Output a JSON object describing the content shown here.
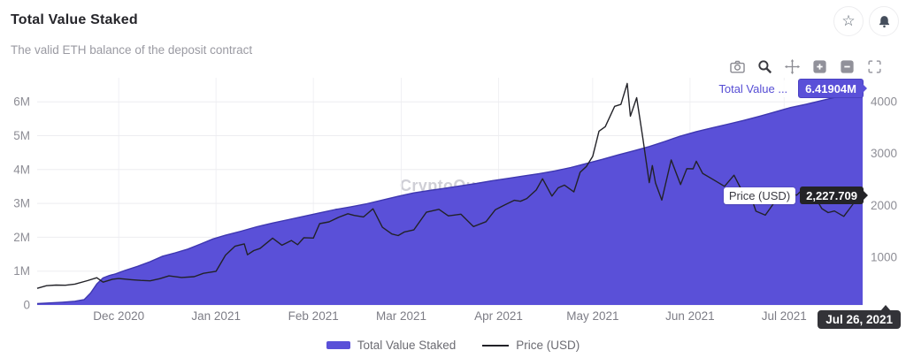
{
  "header": {
    "title": "Total Value Staked",
    "subtitle": "The valid ETH balance of the deposit contract"
  },
  "overlays": {
    "series_label": "Total Value ...",
    "series_value": "6.41904M",
    "price_label": "Price (USD)",
    "price_value": "2,227.709",
    "date_badge": "Jul 26, 2021",
    "watermark": "CryptoQuant"
  },
  "legend": {
    "items": [
      {
        "label": "Total Value Staked",
        "type": "area"
      },
      {
        "label": "Price (USD)",
        "type": "line"
      }
    ]
  },
  "colors": {
    "area": "#5a50d8",
    "area_edge": "#3e37b0",
    "price_line": "#222228",
    "purple_badge": "#5a50d8",
    "dark_badge": "#232327",
    "axis_text": "#8e8e96"
  },
  "chart_data": {
    "type": "area+line",
    "title": "Total Value Staked",
    "subtitle": "The valid ETH balance of the deposit contract",
    "grid": true,
    "legend_position": "bottom",
    "x_range": [
      "2020-11-05",
      "2021-07-26"
    ],
    "x_ticks": [
      {
        "date": "2020-12-01",
        "label": "Dec 2020"
      },
      {
        "date": "2021-01-01",
        "label": "Jan 2021"
      },
      {
        "date": "2021-02-01",
        "label": "Feb 2021"
      },
      {
        "date": "2021-03-01",
        "label": "Mar 2021"
      },
      {
        "date": "2021-04-01",
        "label": "Apr 2021"
      },
      {
        "date": "2021-05-01",
        "label": "May 2021"
      },
      {
        "date": "2021-06-01",
        "label": "Jun 2021"
      },
      {
        "date": "2021-07-01",
        "label": "Jul 2021"
      }
    ],
    "left_axis": {
      "range": [
        0,
        6.71
      ],
      "ticks": [
        {
          "value": 0,
          "label": "0"
        },
        {
          "value": 1,
          "label": "1M"
        },
        {
          "value": 2,
          "label": "2M"
        },
        {
          "value": 3,
          "label": "3M"
        },
        {
          "value": 4,
          "label": "4M"
        },
        {
          "value": 5,
          "label": "5M"
        },
        {
          "value": 6,
          "label": "6M"
        }
      ]
    },
    "right_axis": {
      "range": [
        80,
        4461
      ],
      "ticks": [
        {
          "value": 1000,
          "label": "1000"
        },
        {
          "value": 2000,
          "label": "2000"
        },
        {
          "value": 3000,
          "label": "3000"
        },
        {
          "value": 4000,
          "label": "4000"
        }
      ]
    },
    "series": [
      {
        "name": "Total Value Staked",
        "type": "area",
        "axis": "left",
        "last_value_label": "6.41904M",
        "points": [
          [
            "2020-11-05",
            0.04
          ],
          [
            "2020-11-09",
            0.06
          ],
          [
            "2020-11-13",
            0.08
          ],
          [
            "2020-11-17",
            0.11
          ],
          [
            "2020-11-20",
            0.16
          ],
          [
            "2020-11-22",
            0.35
          ],
          [
            "2020-11-24",
            0.62
          ],
          [
            "2020-11-26",
            0.8
          ],
          [
            "2020-11-28",
            0.87
          ],
          [
            "2020-11-30",
            0.92
          ],
          [
            "2020-12-03",
            1.02
          ],
          [
            "2020-12-07",
            1.14
          ],
          [
            "2020-12-11",
            1.28
          ],
          [
            "2020-12-15",
            1.44
          ],
          [
            "2020-12-19",
            1.54
          ],
          [
            "2020-12-23",
            1.65
          ],
          [
            "2020-12-27",
            1.8
          ],
          [
            "2020-12-31",
            1.95
          ],
          [
            "2021-01-04",
            2.06
          ],
          [
            "2021-01-09",
            2.18
          ],
          [
            "2021-01-14",
            2.31
          ],
          [
            "2021-01-19",
            2.42
          ],
          [
            "2021-01-24",
            2.52
          ],
          [
            "2021-01-29",
            2.62
          ],
          [
            "2021-02-03",
            2.72
          ],
          [
            "2021-02-08",
            2.82
          ],
          [
            "2021-02-13",
            2.9
          ],
          [
            "2021-02-18",
            2.99
          ],
          [
            "2021-02-23",
            3.1
          ],
          [
            "2021-02-28",
            3.21
          ],
          [
            "2021-03-05",
            3.31
          ],
          [
            "2021-03-10",
            3.38
          ],
          [
            "2021-03-15",
            3.45
          ],
          [
            "2021-03-20",
            3.52
          ],
          [
            "2021-03-25",
            3.59
          ],
          [
            "2021-03-30",
            3.67
          ],
          [
            "2021-04-04",
            3.74
          ],
          [
            "2021-04-09",
            3.81
          ],
          [
            "2021-04-14",
            3.88
          ],
          [
            "2021-04-19",
            3.96
          ],
          [
            "2021-04-24",
            4.06
          ],
          [
            "2021-04-29",
            4.18
          ],
          [
            "2021-05-04",
            4.3
          ],
          [
            "2021-05-09",
            4.43
          ],
          [
            "2021-05-14",
            4.55
          ],
          [
            "2021-05-19",
            4.68
          ],
          [
            "2021-05-24",
            4.83
          ],
          [
            "2021-05-29",
            4.99
          ],
          [
            "2021-06-03",
            5.12
          ],
          [
            "2021-06-08",
            5.23
          ],
          [
            "2021-06-13",
            5.34
          ],
          [
            "2021-06-18",
            5.45
          ],
          [
            "2021-06-23",
            5.57
          ],
          [
            "2021-06-28",
            5.7
          ],
          [
            "2021-07-03",
            5.83
          ],
          [
            "2021-07-08",
            5.93
          ],
          [
            "2021-07-13",
            6.04
          ],
          [
            "2021-07-18",
            6.15
          ],
          [
            "2021-07-22",
            6.27
          ],
          [
            "2021-07-26",
            6.41904
          ]
        ]
      },
      {
        "name": "Price (USD)",
        "type": "line",
        "axis": "right",
        "last_value_label": "2,227.709",
        "points": [
          [
            "2020-11-05",
            400
          ],
          [
            "2020-11-08",
            452
          ],
          [
            "2020-11-11",
            463
          ],
          [
            "2020-11-14",
            460
          ],
          [
            "2020-11-17",
            482
          ],
          [
            "2020-11-21",
            548
          ],
          [
            "2020-11-24",
            605
          ],
          [
            "2020-11-26",
            520
          ],
          [
            "2020-11-29",
            576
          ],
          [
            "2020-12-01",
            590
          ],
          [
            "2020-12-05",
            568
          ],
          [
            "2020-12-08",
            554
          ],
          [
            "2020-12-11",
            545
          ],
          [
            "2020-12-14",
            586
          ],
          [
            "2020-12-17",
            640
          ],
          [
            "2020-12-21",
            610
          ],
          [
            "2020-12-25",
            626
          ],
          [
            "2020-12-28",
            690
          ],
          [
            "2021-01-01",
            730
          ],
          [
            "2021-01-04",
            1042
          ],
          [
            "2021-01-07",
            1212
          ],
          [
            "2021-01-10",
            1258
          ],
          [
            "2021-01-11",
            1048
          ],
          [
            "2021-01-13",
            1128
          ],
          [
            "2021-01-15",
            1170
          ],
          [
            "2021-01-19",
            1368
          ],
          [
            "2021-01-22",
            1232
          ],
          [
            "2021-01-25",
            1322
          ],
          [
            "2021-01-27",
            1242
          ],
          [
            "2021-01-29",
            1378
          ],
          [
            "2021-02-01",
            1370
          ],
          [
            "2021-02-03",
            1648
          ],
          [
            "2021-02-06",
            1682
          ],
          [
            "2021-02-09",
            1770
          ],
          [
            "2021-02-12",
            1840
          ],
          [
            "2021-02-14",
            1806
          ],
          [
            "2021-02-17",
            1778
          ],
          [
            "2021-02-20",
            1934
          ],
          [
            "2021-02-23",
            1578
          ],
          [
            "2021-02-26",
            1448
          ],
          [
            "2021-02-28",
            1418
          ],
          [
            "2021-03-02",
            1488
          ],
          [
            "2021-03-05",
            1528
          ],
          [
            "2021-03-09",
            1868
          ],
          [
            "2021-03-13",
            1924
          ],
          [
            "2021-03-16",
            1798
          ],
          [
            "2021-03-20",
            1830
          ],
          [
            "2021-03-24",
            1592
          ],
          [
            "2021-03-28",
            1686
          ],
          [
            "2021-03-31",
            1918
          ],
          [
            "2021-04-03",
            2012
          ],
          [
            "2021-04-06",
            2098
          ],
          [
            "2021-04-08",
            2080
          ],
          [
            "2021-04-10",
            2132
          ],
          [
            "2021-04-13",
            2298
          ],
          [
            "2021-04-15",
            2514
          ],
          [
            "2021-04-18",
            2180
          ],
          [
            "2021-04-20",
            2338
          ],
          [
            "2021-04-22",
            2392
          ],
          [
            "2021-04-25",
            2260
          ],
          [
            "2021-04-27",
            2638
          ],
          [
            "2021-04-29",
            2752
          ],
          [
            "2021-05-01",
            2946
          ],
          [
            "2021-05-03",
            3432
          ],
          [
            "2021-05-05",
            3518
          ],
          [
            "2021-05-08",
            3910
          ],
          [
            "2021-05-10",
            3948
          ],
          [
            "2021-05-12",
            4352
          ],
          [
            "2021-05-13",
            3722
          ],
          [
            "2021-05-15",
            4078
          ],
          [
            "2021-05-17",
            3282
          ],
          [
            "2021-05-19",
            2440
          ],
          [
            "2021-05-20",
            2768
          ],
          [
            "2021-05-21",
            2432
          ],
          [
            "2021-05-23",
            2102
          ],
          [
            "2021-05-26",
            2878
          ],
          [
            "2021-05-29",
            2402
          ],
          [
            "2021-05-31",
            2708
          ],
          [
            "2021-06-02",
            2706
          ],
          [
            "2021-06-03",
            2852
          ],
          [
            "2021-06-05",
            2618
          ],
          [
            "2021-06-08",
            2512
          ],
          [
            "2021-06-12",
            2368
          ],
          [
            "2021-06-15",
            2582
          ],
          [
            "2021-06-18",
            2228
          ],
          [
            "2021-06-20",
            2242
          ],
          [
            "2021-06-22",
            1888
          ],
          [
            "2021-06-25",
            1812
          ],
          [
            "2021-06-27",
            1982
          ],
          [
            "2021-06-29",
            2162
          ],
          [
            "2021-07-01",
            2112
          ],
          [
            "2021-07-03",
            2228
          ],
          [
            "2021-07-05",
            2198
          ],
          [
            "2021-07-07",
            2318
          ],
          [
            "2021-07-09",
            2138
          ],
          [
            "2021-07-11",
            2142
          ],
          [
            "2021-07-13",
            1938
          ],
          [
            "2021-07-15",
            1862
          ],
          [
            "2021-07-17",
            1892
          ],
          [
            "2021-07-20",
            1788
          ],
          [
            "2021-07-23",
            2032
          ],
          [
            "2021-07-25",
            2188
          ],
          [
            "2021-07-26",
            2227.709
          ]
        ]
      }
    ]
  }
}
